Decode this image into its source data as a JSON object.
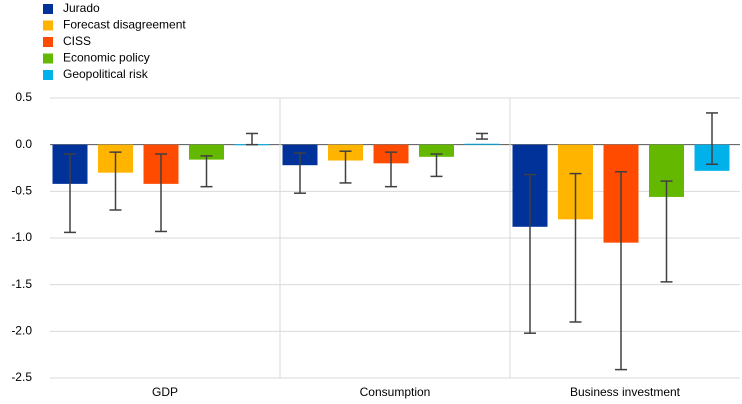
{
  "chart_data": {
    "type": "bar",
    "categories": [
      "GDP",
      "Consumption",
      "Business investment"
    ],
    "series": [
      {
        "name": "Jurado",
        "color": "#003299",
        "values": [
          -0.42,
          -0.22,
          -0.88
        ],
        "lower": [
          -0.94,
          -0.52,
          -2.02
        ],
        "upper": [
          -0.1,
          -0.09,
          -0.32
        ]
      },
      {
        "name": "Forecast disagreement",
        "color": "#ffb400",
        "values": [
          -0.3,
          -0.17,
          -0.8
        ],
        "lower": [
          -0.7,
          -0.41,
          -1.9
        ],
        "upper": [
          -0.08,
          -0.07,
          -0.31
        ]
      },
      {
        "name": "CISS",
        "color": "#ff4b00",
        "values": [
          -0.42,
          -0.2,
          -1.05
        ],
        "lower": [
          -0.93,
          -0.45,
          -2.41
        ],
        "upper": [
          -0.1,
          -0.08,
          -0.29
        ]
      },
      {
        "name": "Economic policy",
        "color": "#65b800",
        "values": [
          -0.16,
          -0.13,
          -0.56
        ],
        "lower": [
          -0.45,
          -0.34,
          -1.47
        ],
        "upper": [
          -0.12,
          -0.1,
          -0.39
        ]
      },
      {
        "name": "Geopolitical risk",
        "color": "#00b1ea",
        "values": [
          0.005,
          0.01,
          -0.28
        ],
        "lower": [
          0.0,
          0.06,
          -0.21
        ],
        "upper": [
          0.12,
          0.12,
          0.34
        ]
      }
    ],
    "ylim": [
      -2.5,
      0.5
    ],
    "yticks": [
      0.5,
      {
        "value": 0,
        "label": "0.0"
      },
      -0.5,
      {
        "value": -1,
        "label": "-1.0"
      },
      -1.5,
      {
        "value": -2,
        "label": "-2.0"
      },
      -2.5
    ],
    "grid": true,
    "legend": "top-left"
  }
}
